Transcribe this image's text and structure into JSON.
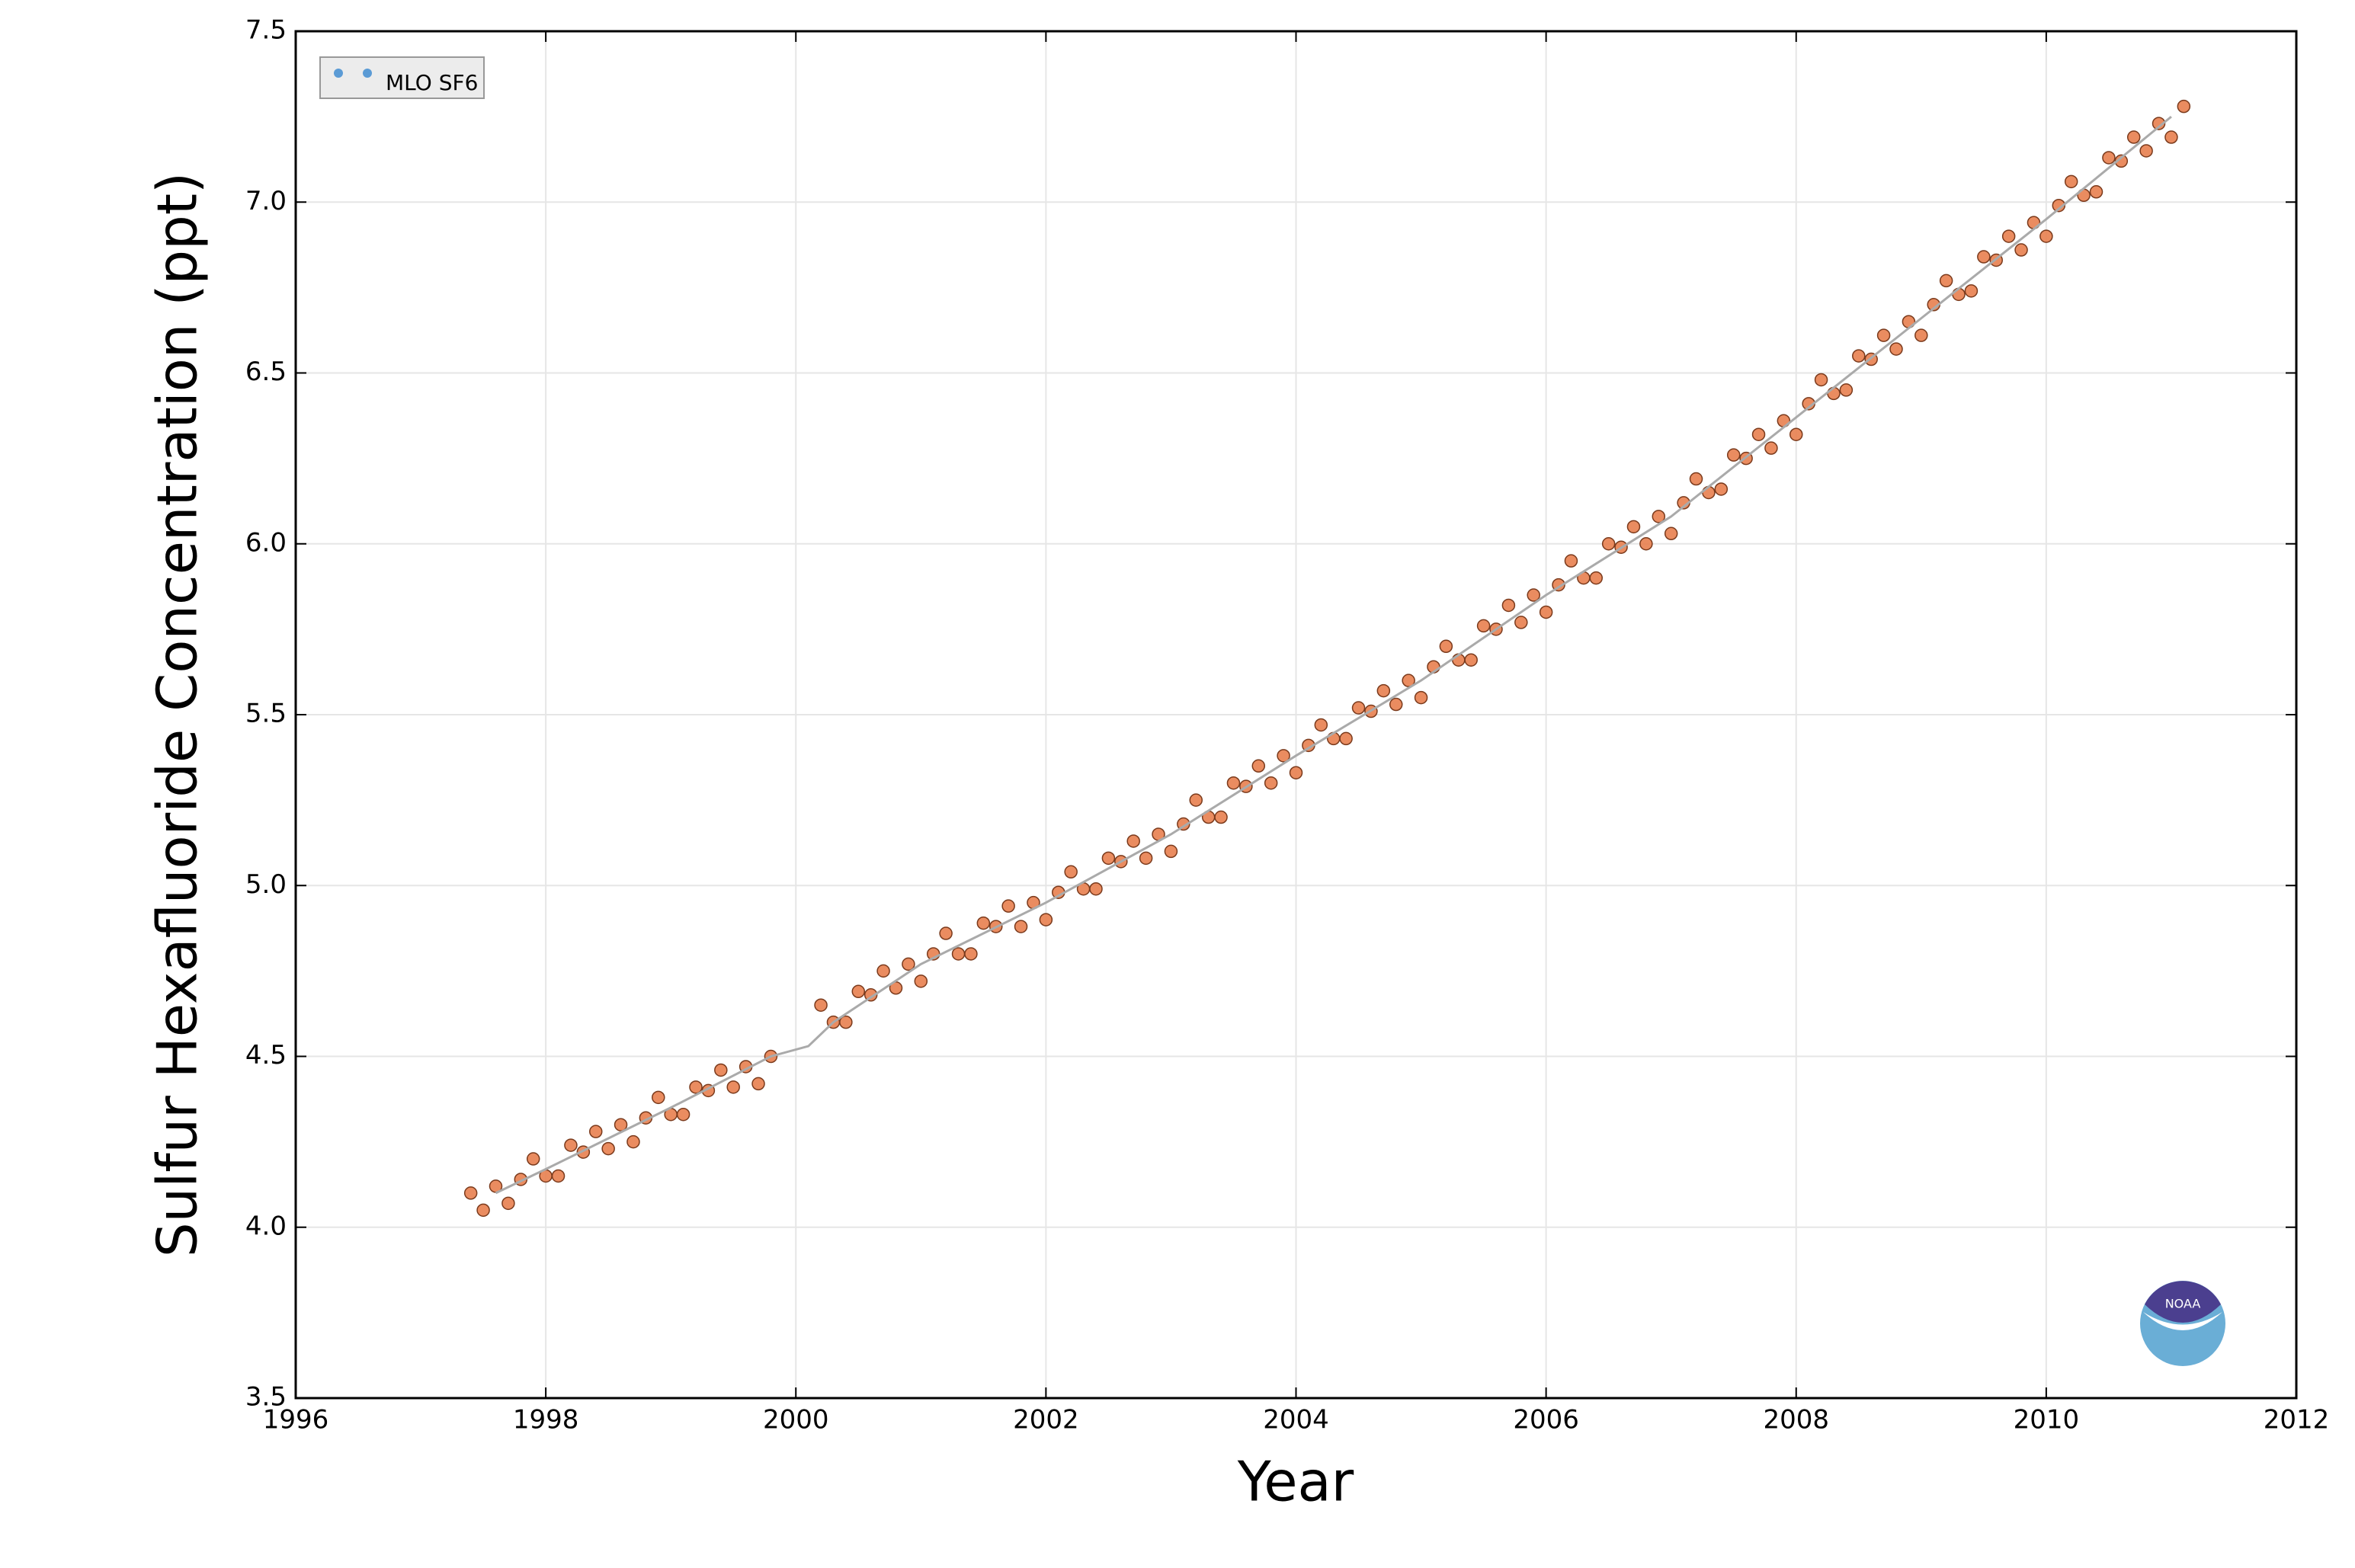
{
  "chart_data": {
    "type": "scatter",
    "xlabel": "Year",
    "ylabel": "Sulfur Hexafluoride Concentration (ppt)",
    "xlim": [
      1996,
      2012
    ],
    "ylim": [
      3.5,
      7.5
    ],
    "xticks": [
      1996,
      1998,
      2000,
      2002,
      2004,
      2006,
      2008,
      2010,
      2012
    ],
    "yticks": [
      3.5,
      {
        "value": 4,
        "label": "4.0"
      },
      4.5,
      {
        "value": 5,
        "label": "5.0"
      },
      5.5,
      {
        "value": 6,
        "label": "6.0"
      },
      6.5,
      {
        "value": 7,
        "label": "7.0"
      },
      7.5
    ],
    "grid": true,
    "legend": "upper left",
    "legend_color": "#5b9bd5",
    "logo": "NOAA",
    "series": [
      {
        "name": "MLO SF6",
        "style": "marker",
        "color": "#e8804f",
        "edgecolor": "#7a3a1c",
        "x": [
          1997.4,
          1997.5,
          1997.6,
          1997.7,
          1997.8,
          1997.9,
          1998.0,
          1998.1,
          1998.2,
          1998.3,
          1998.4,
          1998.5,
          1998.6,
          1998.7,
          1998.8,
          1998.9,
          1999.0,
          1999.1,
          1999.2,
          1999.3,
          1999.4,
          1999.5,
          1999.6,
          1999.7,
          1999.8,
          2000.2,
          2000.3,
          2000.4,
          2000.5,
          2000.6,
          2000.7,
          2000.8,
          2000.9,
          2001.0,
          2001.1,
          2001.2,
          2001.3,
          2001.4,
          2001.5,
          2001.6,
          2001.7,
          2001.8,
          2001.9,
          2002.0,
          2002.1,
          2002.2,
          2002.3,
          2002.4,
          2002.5,
          2002.6,
          2002.7,
          2002.8,
          2002.9,
          2003.0,
          2003.1,
          2003.2,
          2003.3,
          2003.4,
          2003.5,
          2003.6,
          2003.7,
          2003.8,
          2003.9,
          2004.0,
          2004.1,
          2004.2,
          2004.3,
          2004.4,
          2004.5,
          2004.6,
          2004.7,
          2004.8,
          2004.9,
          2005.0,
          2005.1,
          2005.2,
          2005.3,
          2005.4,
          2005.5,
          2005.6,
          2005.7,
          2005.8,
          2005.9,
          2006.0,
          2006.1,
          2006.2,
          2006.3,
          2006.4,
          2006.5,
          2006.6,
          2006.7,
          2006.8,
          2006.9,
          2007.0,
          2007.1,
          2007.2,
          2007.3,
          2007.4,
          2007.5,
          2007.6,
          2007.7,
          2007.8,
          2007.9,
          2008.0,
          2008.1,
          2008.2,
          2008.3,
          2008.4,
          2008.5,
          2008.6,
          2008.7,
          2008.8,
          2008.9,
          2009.0,
          2009.1,
          2009.2,
          2009.3,
          2009.4,
          2009.5,
          2009.6,
          2009.7,
          2009.8,
          2009.9,
          2010.0,
          2010.1,
          2010.2,
          2010.3,
          2010.4,
          2010.5,
          2010.6,
          2010.7,
          2010.8,
          2010.9,
          2011.0,
          2011.1
        ],
        "values": [
          4.1,
          4.05,
          4.12,
          4.07,
          4.14,
          4.2,
          4.15,
          4.15,
          4.24,
          4.22,
          4.28,
          4.23,
          4.3,
          4.25,
          4.32,
          4.38,
          4.33,
          4.33,
          4.41,
          4.4,
          4.46,
          4.41,
          4.47,
          4.42,
          4.5,
          4.65,
          4.6,
          4.6,
          4.69,
          4.68,
          4.75,
          4.7,
          4.77,
          4.72,
          4.8,
          4.86,
          4.8,
          4.8,
          4.89,
          4.88,
          4.94,
          4.88,
          4.95,
          4.9,
          4.98,
          5.04,
          4.99,
          4.99,
          5.08,
          5.07,
          5.13,
          5.08,
          5.15,
          5.1,
          5.18,
          5.25,
          5.2,
          5.2,
          5.3,
          5.29,
          5.35,
          5.3,
          5.38,
          5.33,
          5.41,
          5.47,
          5.43,
          5.43,
          5.52,
          5.51,
          5.57,
          5.53,
          5.6,
          5.55,
          5.64,
          5.7,
          5.66,
          5.66,
          5.76,
          5.75,
          5.82,
          5.77,
          5.85,
          5.8,
          5.88,
          5.95,
          5.9,
          5.9,
          6.0,
          5.99,
          6.05,
          6.0,
          6.08,
          6.03,
          6.12,
          6.19,
          6.15,
          6.16,
          6.26,
          6.25,
          6.32,
          6.28,
          6.36,
          6.32,
          6.41,
          6.48,
          6.44,
          6.45,
          6.55,
          6.54,
          6.61,
          6.57,
          6.65,
          6.61,
          6.7,
          6.77,
          6.73,
          6.74,
          6.84,
          6.83,
          6.9,
          6.86,
          6.94,
          6.9,
          6.99,
          7.06,
          7.02,
          7.03,
          7.13,
          7.12,
          7.19,
          7.15,
          7.23,
          7.19,
          7.28
        ]
      },
      {
        "style": "line",
        "color": "#aaaaaa",
        "x": [
          1997.6,
          1998,
          1999,
          1999.8,
          2000.1,
          2000.3,
          2001,
          2002,
          2003,
          2004,
          2005,
          2006,
          2007,
          2008,
          2009,
          2010,
          2011
        ],
        "values": [
          4.1,
          4.17,
          4.35,
          4.5,
          4.53,
          4.6,
          4.77,
          4.95,
          5.15,
          5.38,
          5.6,
          5.85,
          6.08,
          6.37,
          6.66,
          6.95,
          7.25
        ]
      }
    ]
  }
}
